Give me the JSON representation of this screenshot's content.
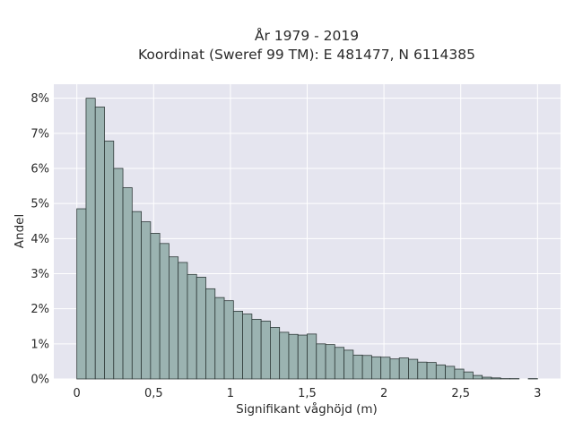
{
  "chart_data": {
    "type": "bar",
    "title_lines": [
      "År 1979 - 2019",
      "Koordinat (Sweref 99 TM): E 481477, N 6114385"
    ],
    "xlabel": "Signifikant våghöjd (m)",
    "ylabel": "Andel",
    "xlim": [
      -0.15,
      3.15
    ],
    "ylim": [
      0,
      8.4
    ],
    "x_ticks": [
      0,
      0.5,
      1,
      1.5,
      2,
      2.5,
      3
    ],
    "x_tick_labels": [
      "0",
      "0,5",
      "1",
      "1,5",
      "2",
      "2,5",
      "3"
    ],
    "y_ticks": [
      0,
      1,
      2,
      3,
      4,
      5,
      6,
      7,
      8
    ],
    "y_tick_labels": [
      "0%",
      "1%",
      "2%",
      "3%",
      "4%",
      "5%",
      "6%",
      "7%",
      "8%"
    ],
    "bin_width": 0.06,
    "bin_start": 0,
    "values_percent": [
      4.85,
      8.0,
      7.75,
      6.78,
      6.0,
      5.45,
      4.77,
      4.48,
      4.15,
      3.86,
      3.48,
      3.32,
      2.98,
      2.9,
      2.57,
      2.32,
      2.23,
      1.93,
      1.85,
      1.7,
      1.65,
      1.47,
      1.33,
      1.27,
      1.25,
      1.28,
      1.0,
      0.98,
      0.9,
      0.82,
      0.68,
      0.67,
      0.63,
      0.62,
      0.57,
      0.6,
      0.56,
      0.48,
      0.47,
      0.4,
      0.36,
      0.28,
      0.2,
      0.1,
      0.05,
      0.03,
      0.01,
      0.01,
      0.0,
      0.01
    ],
    "grid": true,
    "colors": {
      "bar_fill": "#9bb3b1",
      "bar_edge": "#2f3a39",
      "plot_bg": "#e5e5ef"
    }
  }
}
